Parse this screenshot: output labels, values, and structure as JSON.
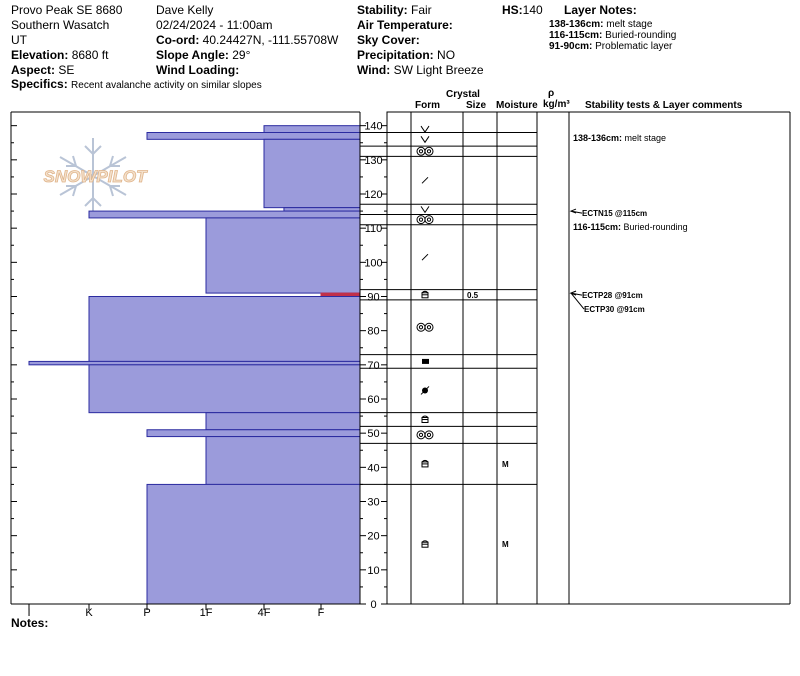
{
  "header": {
    "location": "Provo Peak SE 8680",
    "region": "Southern Wasatch",
    "state": "UT",
    "elevation_label": "Elevation:",
    "elevation_value": "8680 ft",
    "aspect_label": "Aspect:",
    "aspect_value": "SE",
    "specifics_label": "Specifics:",
    "specifics_value": "Recent avalanche activity on similar slopes",
    "observer": "Dave Kelly",
    "datetime": "02/24/2024 - 11:00am",
    "coord_label": "Co-ord:",
    "coord_value": "40.24427N, -111.55708W",
    "slope_label": "Slope Angle:",
    "slope_value": "29°",
    "wind_loading_label": "Wind Loading:",
    "wind_loading_value": "",
    "stability_label": "Stability:",
    "stability_value": "Fair",
    "air_temp_label": "Air Temperature:",
    "air_temp_value": "",
    "sky_label": "Sky Cover:",
    "sky_value": "",
    "precip_label": "Precipitation:",
    "precip_value": "NO",
    "wind_label": "Wind:",
    "wind_value": "SW Light Breeze",
    "hs_label": "HS:",
    "hs_value": "140",
    "layer_notes_title": "Layer Notes:",
    "layer_notes": [
      {
        "range": "138-136cm:",
        "text": "melt stage"
      },
      {
        "range": "116-115cm:",
        "text": "Buried-rounding"
      },
      {
        "range": "91-90cm:",
        "text": "Problematic layer"
      }
    ]
  },
  "columns": {
    "crystal": "Crystal",
    "form": "Form",
    "size": "Size",
    "moisture": "Moisture",
    "rho": "ρ",
    "density_unit": "kg/m³",
    "stability": "Stability tests & Layer comments"
  },
  "logo_text": "SNOWPILOT",
  "notes_label": "Notes:",
  "colors": {
    "hardness_fill": "#9b9bdb",
    "hardness_stroke": "#2b2ba0",
    "problem_layer": "#c0304a",
    "logo": "#e9c9a6",
    "snowflake": "#b9c4d6"
  },
  "chart_data": {
    "type": "snow-profile",
    "hardness_scale": [
      "I",
      "K",
      "P",
      "1F",
      "4F",
      "F"
    ],
    "height_ticks": [
      "0",
      "10",
      "20",
      "30",
      "40",
      "50",
      "60",
      "70",
      "80",
      "90",
      "100",
      "110",
      "120",
      "130",
      "140"
    ],
    "ylim": [
      0,
      140
    ],
    "hardness_profile": [
      {
        "top": 140,
        "bottom": 138,
        "hardness": 5.0
      },
      {
        "top": 138,
        "bottom": 136,
        "hardness": 3.0
      },
      {
        "top": 136,
        "bottom": 116,
        "hardness": 5.0
      },
      {
        "top": 116,
        "bottom": 115,
        "hardness": 5.35
      },
      {
        "top": 115,
        "bottom": 113,
        "hardness": 2.0
      },
      {
        "top": 113,
        "bottom": 91,
        "hardness": 4.0
      },
      {
        "top": 91,
        "bottom": 90,
        "hardness": 6.0,
        "problem": true
      },
      {
        "top": 90,
        "bottom": 71,
        "hardness": 2.0
      },
      {
        "top": 71,
        "bottom": 70,
        "hardness": 1.0
      },
      {
        "top": 70,
        "bottom": 56,
        "hardness": 2.0
      },
      {
        "top": 56,
        "bottom": 51,
        "hardness": 4.0
      },
      {
        "top": 51,
        "bottom": 49,
        "hardness": 3.0
      },
      {
        "top": 49,
        "bottom": 35,
        "hardness": 4.0
      },
      {
        "top": 35,
        "bottom": 0,
        "hardness": 3.0
      }
    ],
    "layers": [
      {
        "top": 140,
        "bottom": 138,
        "form_icon": "depth-hoar-icon",
        "size": "",
        "moisture": ""
      },
      {
        "top": 138,
        "bottom": 134,
        "form_icon": "depth-hoar-icon",
        "size": "",
        "moisture": ""
      },
      {
        "top": 134,
        "bottom": 131,
        "form_icon": "melt-form-icon",
        "size": "",
        "moisture": ""
      },
      {
        "top": 131,
        "bottom": 117,
        "form_icon": "decomposing-icon",
        "size": "",
        "moisture": ""
      },
      {
        "top": 117,
        "bottom": 114,
        "form_icon": "depth-hoar-icon",
        "size": "",
        "moisture": ""
      },
      {
        "top": 114,
        "bottom": 111,
        "form_icon": "melt-form-icon",
        "size": "",
        "moisture": ""
      },
      {
        "top": 111,
        "bottom": 92,
        "form_icon": "decomposing-icon",
        "size": "",
        "moisture": ""
      },
      {
        "top": 92,
        "bottom": 89,
        "form_icon": "faceted-icon",
        "size": "0.5",
        "moisture": ""
      },
      {
        "top": 89,
        "bottom": 73,
        "form_icon": "melt-form-icon",
        "size": "",
        "moisture": ""
      },
      {
        "top": 73,
        "bottom": 69,
        "form_icon": "ice-layer-icon",
        "size": "",
        "moisture": ""
      },
      {
        "top": 69,
        "bottom": 56,
        "form_icon": "graupel-icon",
        "size": "",
        "moisture": ""
      },
      {
        "top": 56,
        "bottom": 52,
        "form_icon": "faceted-icon",
        "size": "",
        "moisture": ""
      },
      {
        "top": 52,
        "bottom": 47,
        "form_icon": "melt-form-icon",
        "size": "",
        "moisture": ""
      },
      {
        "top": 47,
        "bottom": 35,
        "form_icon": "faceted-icon",
        "size": "",
        "moisture": "M"
      },
      {
        "top": 35,
        "bottom": 0,
        "form_icon": "faceted-icon",
        "size": "",
        "moisture": "M"
      }
    ],
    "stability_comments": [
      {
        "height": 137,
        "text": "138-136cm: melt stage",
        "bold": "138-136cm:",
        "arrow": false
      },
      {
        "height": 115,
        "text": "ECTN15 @115cm",
        "arrow": true
      },
      {
        "height": 111,
        "text": "116-115cm: Buried-rounding",
        "bold": "116-115cm:",
        "arrow": false
      },
      {
        "height": 91,
        "text": "ECTP28 @91cm",
        "arrow": true
      },
      {
        "height": 91,
        "text": "ECTP30 @91cm",
        "arrow": true,
        "offset": 1
      }
    ]
  }
}
